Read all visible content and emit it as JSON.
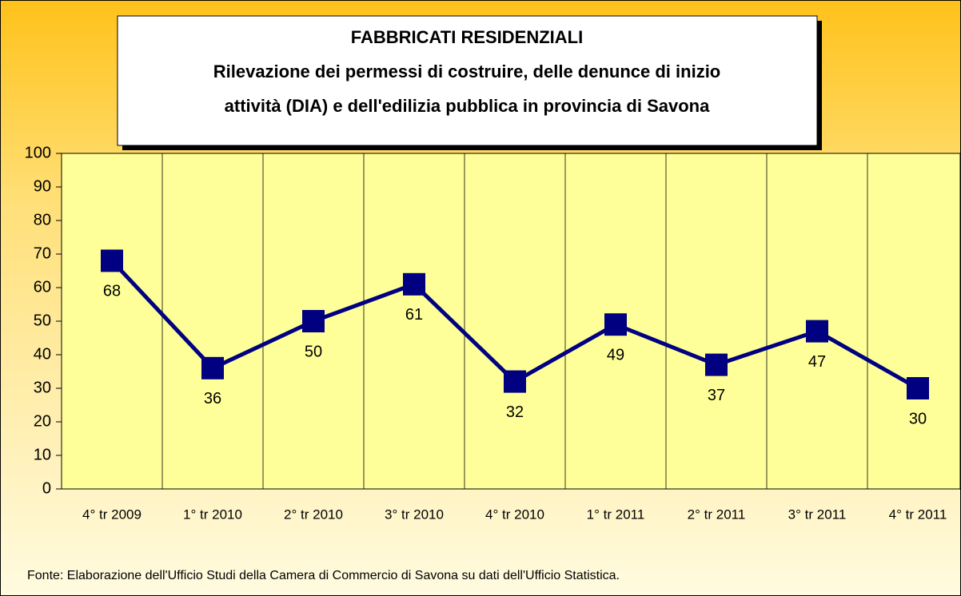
{
  "chart_data": {
    "type": "line",
    "title": "FABBRICATI RESIDENZIALI",
    "subtitle": [
      "Rilevazione dei permessi di costruire, delle denunce di inizio",
      "attività (DIA) e dell'edilizia pubblica in provincia di Savona"
    ],
    "categories": [
      "4° tr 2009",
      "1° tr 2010",
      "2° tr 2010",
      "3° tr 2010",
      "4° tr 2010",
      "1° tr 2011",
      "2° tr 2011",
      "3° tr 2011",
      "4° tr 2011"
    ],
    "series": [
      {
        "name": "Fabbricati residenziali",
        "color": "#000080",
        "values": [
          68,
          36,
          50,
          61,
          32,
          49,
          37,
          47,
          30
        ]
      }
    ],
    "ylim": [
      0,
      100
    ],
    "yticks": [
      0,
      10,
      20,
      30,
      40,
      50,
      60,
      70,
      80,
      90,
      100
    ],
    "grid": true,
    "source": "Fonte:  Elaborazione dell'Ufficio Studi  della Camera di Commercio di Savona su dati dell'Ufficio Statistica."
  }
}
